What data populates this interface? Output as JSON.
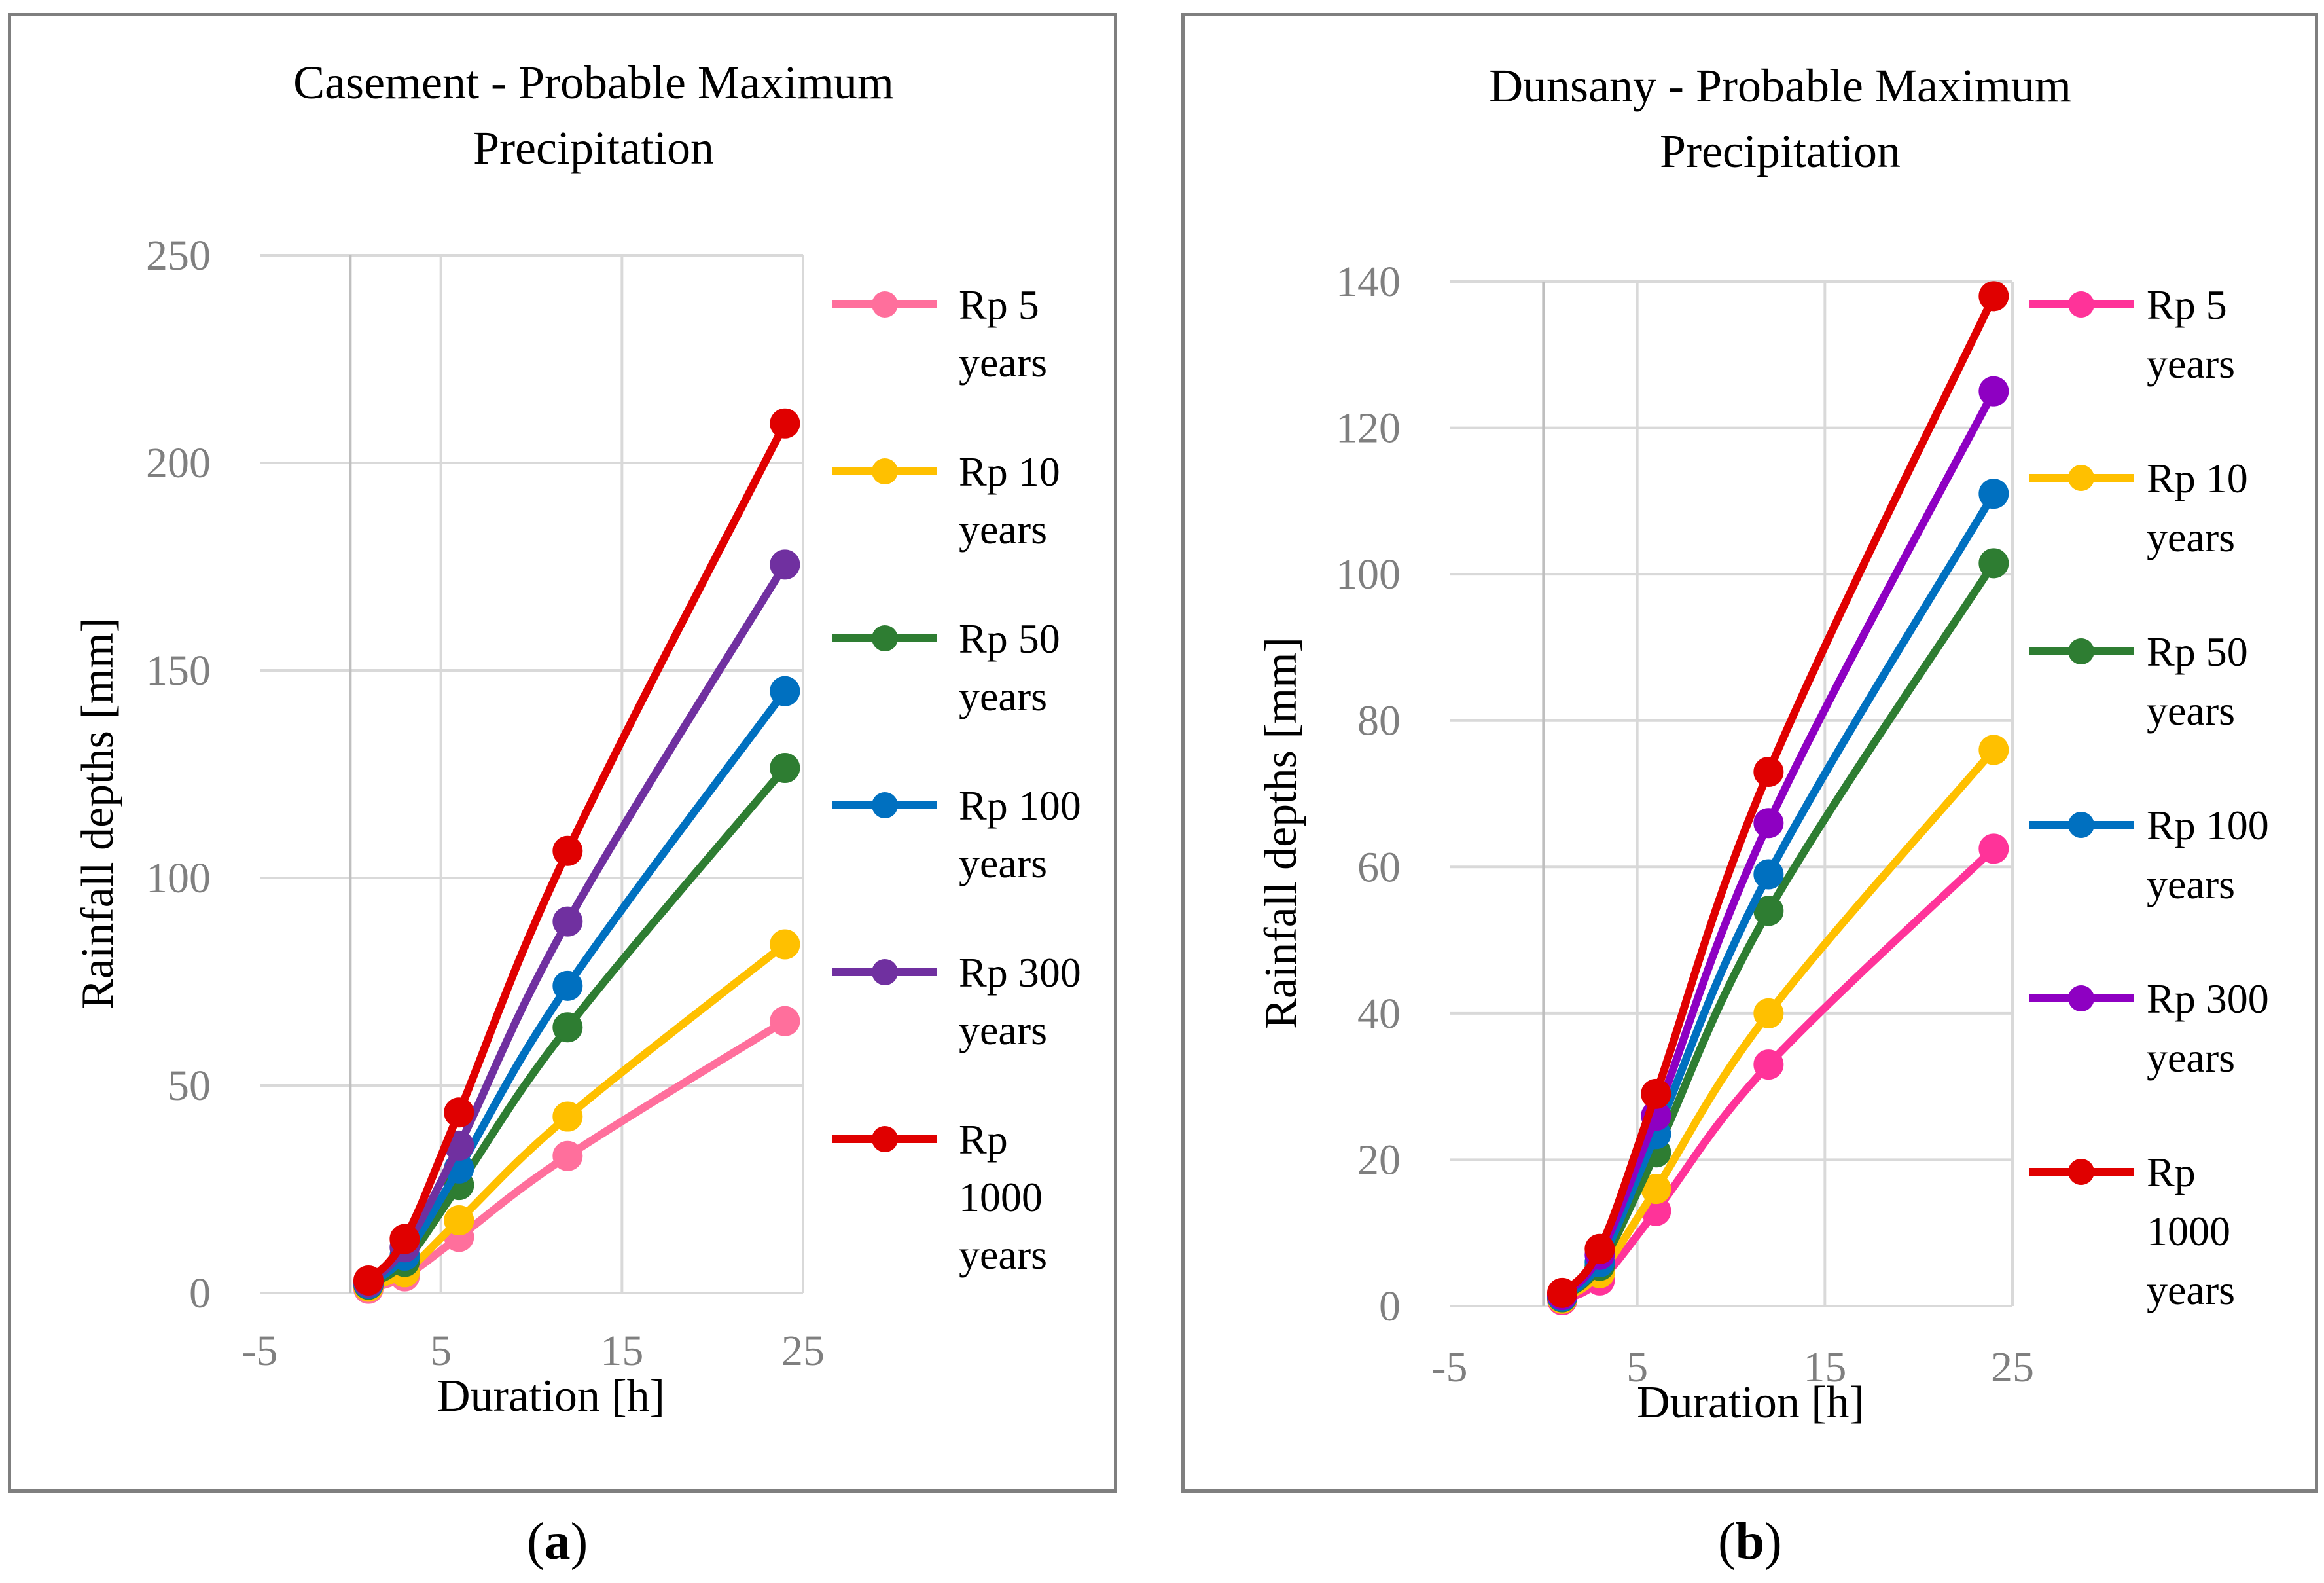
{
  "chart_data": [
    {
      "type": "scatter",
      "title_lines": [
        "Casement - Probable Maximum",
        "Precipitation"
      ],
      "xlabel": "Duration [h]",
      "ylabel": "Rainfall depths [mm]",
      "xlim": [
        -5,
        25
      ],
      "ylim": [
        0,
        250
      ],
      "xticks": [
        -5,
        5,
        15,
        25
      ],
      "yticks": [
        0,
        50,
        100,
        150,
        200,
        250
      ],
      "xgrid": [
        0,
        5,
        15,
        25
      ],
      "x": [
        1,
        3,
        6,
        12,
        24
      ],
      "series": [
        {
          "name": "Rp 5 years",
          "legend_lines": [
            "Rp 5",
            "years"
          ],
          "color": "#ff6f9c",
          "values": [
            1,
            4,
            13.5,
            33,
            65.5
          ]
        },
        {
          "name": "Rp 10 years",
          "legend_lines": [
            "Rp 10",
            "years"
          ],
          "color": "#ffc000",
          "values": [
            1.5,
            5,
            17.5,
            42.5,
            84
          ]
        },
        {
          "name": "Rp 50 years",
          "legend_lines": [
            "Rp 50",
            "years"
          ],
          "color": "#2e7d32",
          "values": [
            2,
            7.5,
            26,
            64,
            126.5
          ]
        },
        {
          "name": "Rp 100 years",
          "legend_lines": [
            "Rp 100",
            "years"
          ],
          "color": "#0070c0",
          "values": [
            2.2,
            9,
            30,
            74,
            145
          ]
        },
        {
          "name": "Rp 300 years",
          "legend_lines": [
            "Rp 300",
            "years"
          ],
          "color": "#7030a0",
          "values": [
            2.5,
            11,
            35.5,
            89.5,
            175.5
          ]
        },
        {
          "name": "Rp 1000 years",
          "legend_lines": [
            "Rp",
            "1000",
            "years"
          ],
          "color": "#e00000",
          "values": [
            3,
            13,
            43.5,
            106.5,
            209.5
          ]
        }
      ]
    },
    {
      "type": "scatter",
      "title_lines": [
        "Dunsany - Probable Maximum",
        "Precipitation"
      ],
      "xlabel": "Duration [h]",
      "ylabel": "Rainfall depths [mm]",
      "xlim": [
        -5,
        25
      ],
      "ylim": [
        0,
        140
      ],
      "xticks": [
        -5,
        5,
        15,
        25
      ],
      "yticks": [
        0,
        20,
        40,
        60,
        80,
        100,
        120,
        140
      ],
      "xgrid": [
        0,
        5,
        15,
        25
      ],
      "x": [
        1,
        3,
        6,
        12,
        24
      ],
      "series": [
        {
          "name": "Rp 5 years",
          "legend_lines": [
            "Rp 5",
            "years"
          ],
          "color": "#ff3399",
          "values": [
            0.8,
            3.5,
            13,
            33,
            62.5
          ]
        },
        {
          "name": "Rp 10 years",
          "legend_lines": [
            "Rp 10",
            "years"
          ],
          "color": "#ffc000",
          "values": [
            1,
            4.5,
            16,
            40,
            76
          ]
        },
        {
          "name": "Rp 50 years",
          "legend_lines": [
            "Rp 50",
            "years"
          ],
          "color": "#2e7d32",
          "values": [
            1.2,
            5.5,
            21,
            54,
            101.5
          ]
        },
        {
          "name": "Rp 100 years",
          "legend_lines": [
            "Rp 100",
            "years"
          ],
          "color": "#0070c0",
          "values": [
            1.3,
            6,
            23.5,
            59,
            111
          ]
        },
        {
          "name": "Rp 300 years",
          "legend_lines": [
            "Rp 300",
            "years"
          ],
          "color": "#8e00c2",
          "values": [
            1.5,
            7,
            26,
            66,
            125
          ]
        },
        {
          "name": "Rp 1000 years",
          "legend_lines": [
            "Rp",
            "1000",
            "years"
          ],
          "color": "#e00000",
          "values": [
            1.8,
            7.8,
            29,
            73,
            138
          ]
        }
      ]
    }
  ],
  "captions": [
    {
      "open": "(",
      "letter": "a",
      "close": ")"
    },
    {
      "open": "(",
      "letter": "b",
      "close": ")"
    }
  ]
}
